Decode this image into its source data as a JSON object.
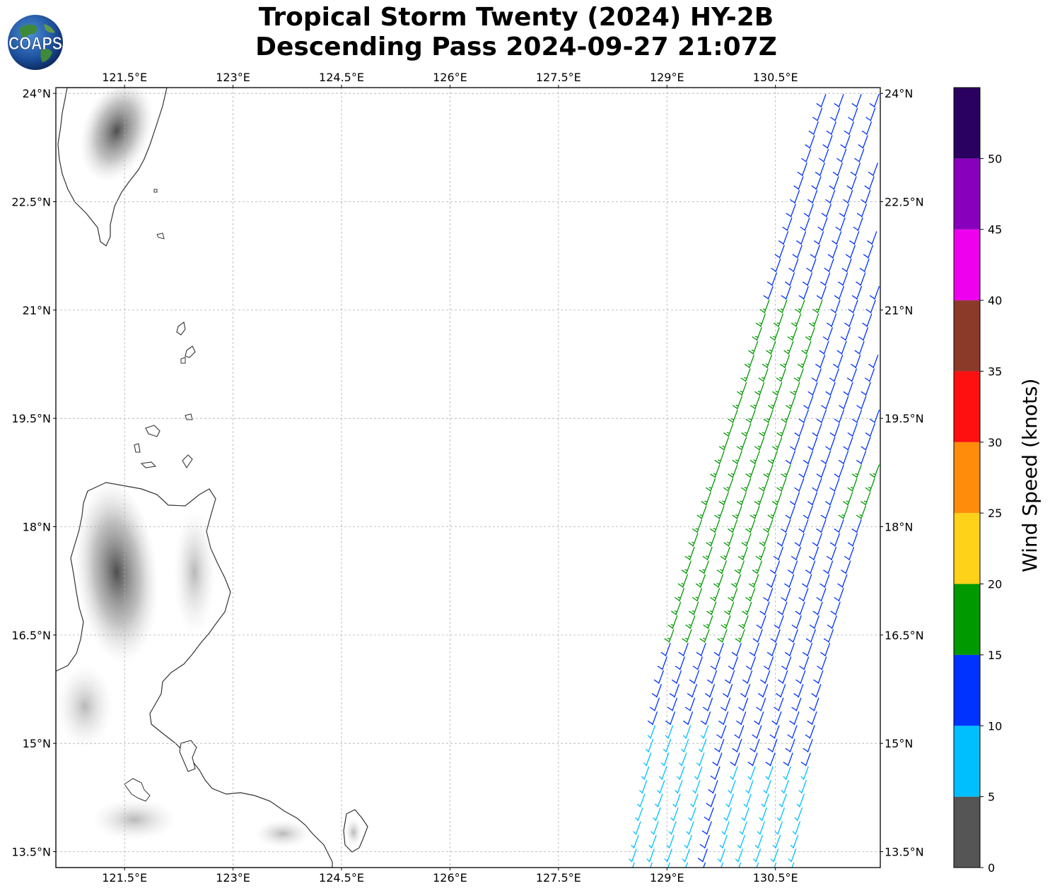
{
  "title": {
    "line1": "Tropical Storm Twenty (2024) HY-2B",
    "line2": "Descending Pass 2024-09-27 21:07Z"
  },
  "logo": {
    "text": "COAPS",
    "icon": "globe-icon"
  },
  "map": {
    "lon_min": 120.55,
    "lon_max": 131.95,
    "lat_min": 13.28,
    "lat_max": 24.08,
    "lon_ticks": [
      "121.5°E",
      "123°E",
      "124.5°E",
      "126°E",
      "127.5°E",
      "129°E",
      "130.5°E"
    ],
    "lon_tick_values": [
      121.5,
      123,
      124.5,
      126,
      127.5,
      129,
      130.5
    ],
    "lat_ticks": [
      "24°N",
      "22.5°N",
      "21°N",
      "19.5°N",
      "18°N",
      "16.5°N",
      "15°N",
      "13.5°N"
    ],
    "lat_tick_values": [
      24,
      22.5,
      21,
      19.5,
      18,
      16.5,
      15,
      13.5
    ],
    "gridlines": true,
    "coastline_color": "#333333",
    "terrain_shading": "grayscale"
  },
  "colorbar": {
    "label": "Wind Speed (knots)",
    "tick_labels": [
      "0",
      "5",
      "10",
      "15",
      "20",
      "25",
      "30",
      "35",
      "40",
      "45",
      "50"
    ],
    "bins": [
      {
        "min": 0,
        "max": 5,
        "color": "#555555"
      },
      {
        "min": 5,
        "max": 10,
        "color": "#00bfff"
      },
      {
        "min": 10,
        "max": 15,
        "color": "#0033ff"
      },
      {
        "min": 15,
        "max": 20,
        "color": "#009900"
      },
      {
        "min": 20,
        "max": 25,
        "color": "#ffd21a"
      },
      {
        "min": 25,
        "max": 30,
        "color": "#ff8c0a"
      },
      {
        "min": 30,
        "max": 35,
        "color": "#ff1010"
      },
      {
        "min": 35,
        "max": 40,
        "color": "#8b3a2a"
      },
      {
        "min": 40,
        "max": 45,
        "color": "#ee00ee"
      },
      {
        "min": 45,
        "max": 50,
        "color": "#8800bb"
      },
      {
        "min": 50,
        "max": 55,
        "color": "#2a0060"
      }
    ]
  },
  "wind_swath": {
    "description_units": "knots",
    "row_lat_start": 13.35,
    "row_lat_end": 24.0,
    "row_lat_step": 0.19,
    "columns": 10,
    "col_lon_step": 0.245,
    "west_edge": [
      [
        13.35,
        128.55
      ],
      [
        16.0,
        128.95
      ],
      [
        18.0,
        129.45
      ],
      [
        20.0,
        130.1
      ],
      [
        22.0,
        130.65
      ],
      [
        24.0,
        131.2
      ]
    ],
    "east_edge": 131.95,
    "wind_direction_from_deg": 200,
    "speed_zones": [
      {
        "region": "southern swath, western side (lat < 15.3)",
        "speed_kt": 8
      },
      {
        "region": "southern swath, eastern side (lat < 14.8)",
        "speed_kt": 8
      },
      {
        "region": "central swath",
        "speed_kt": 13
      },
      {
        "region": "core band 16.5°N–21.3°N, western columns",
        "speed_kt": 17
      },
      {
        "region": "northern swath (lat > 21.3)",
        "speed_kt": 12
      },
      {
        "region": "north-east corner (lat > 23.3)",
        "speed_kt": 8
      }
    ]
  }
}
